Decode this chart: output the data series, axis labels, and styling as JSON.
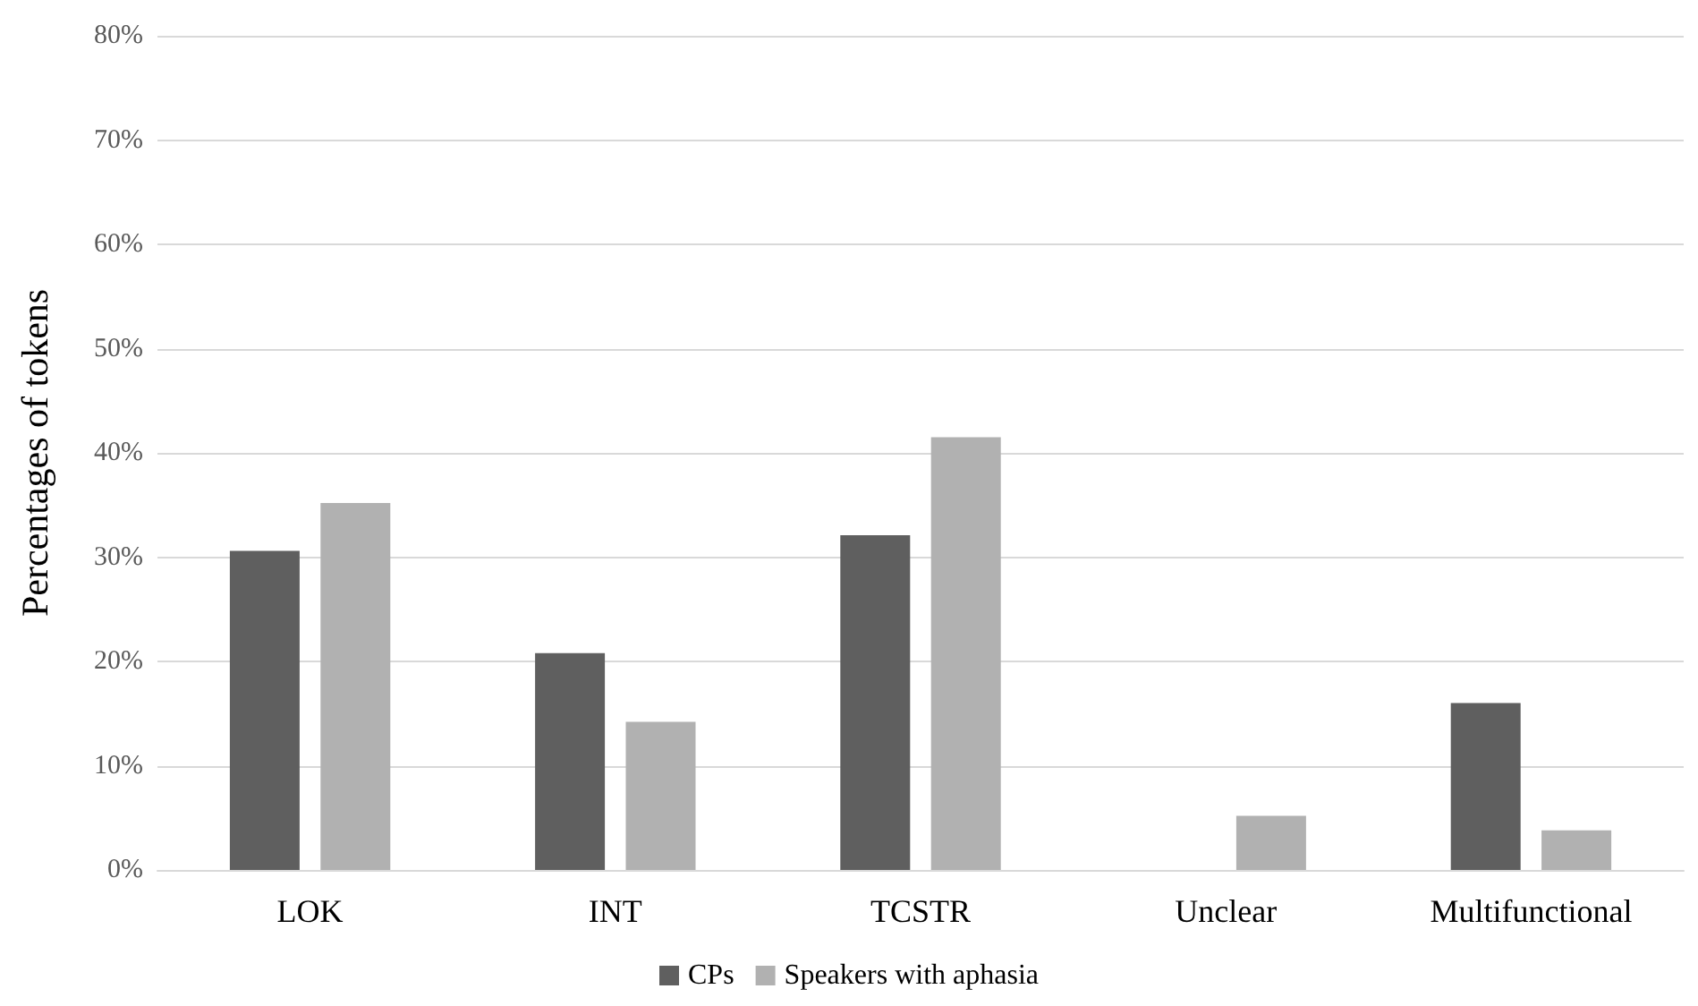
{
  "chart_data": {
    "type": "bar",
    "ylabel": "Percentages of tokens",
    "categories": [
      "LOK",
      "INT",
      "TCSTR",
      "Unclear",
      "Multifunctional"
    ],
    "series": [
      {
        "name": "CPs",
        "color": "#5f5f5f",
        "values": [
          30.6,
          20.8,
          32.1,
          0,
          16.0
        ]
      },
      {
        "name": "Speakers with aphasia",
        "color": "#b1b1b1",
        "values": [
          35.2,
          14.2,
          41.5,
          5.2,
          3.8
        ]
      }
    ],
    "ylim": [
      0,
      80
    ],
    "yticks": [
      {
        "value": 0,
        "label": "0%"
      },
      {
        "value": 10,
        "label": "10%"
      },
      {
        "value": 20,
        "label": "20%"
      },
      {
        "value": 30,
        "label": "30%"
      },
      {
        "value": 40,
        "label": "40%"
      },
      {
        "value": 50,
        "label": "50%"
      },
      {
        "value": 60,
        "label": "60%"
      },
      {
        "value": 70,
        "label": "70%"
      },
      {
        "value": 80,
        "label": "80%"
      }
    ],
    "grid": "y",
    "legend": "bottom"
  }
}
